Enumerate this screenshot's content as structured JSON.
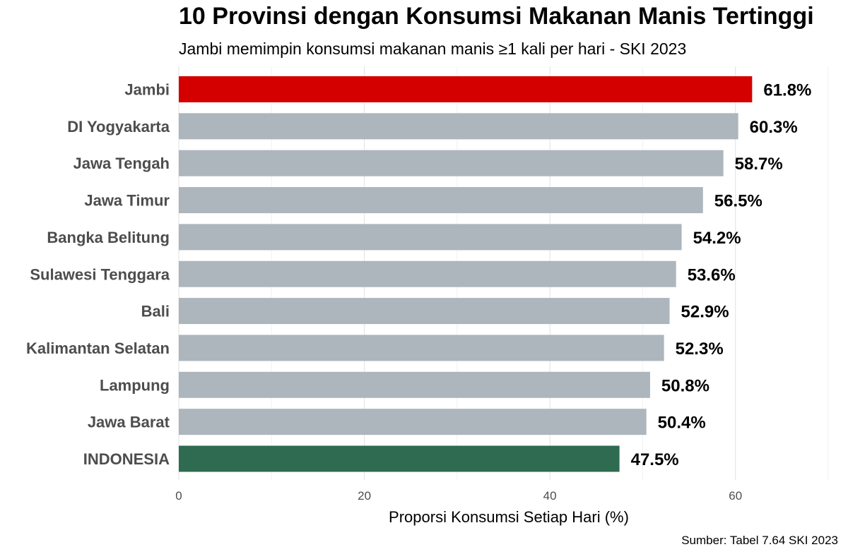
{
  "chart_data": {
    "type": "bar",
    "orientation": "horizontal",
    "title": "10 Provinsi dengan Konsumsi Makanan Manis Tertinggi",
    "subtitle": "Jambi memimpin konsumsi makanan manis ≥1 kali per hari - SKI 2023",
    "xlabel": "Proporsi Konsumsi Setiap Hari (%)",
    "ylabel": "",
    "xlim": [
      0,
      70
    ],
    "xticks": [
      0,
      20,
      40,
      60
    ],
    "grid": true,
    "categories": [
      "Jambi",
      "DI Yogyakarta",
      "Jawa Tengah",
      "Jawa Timur",
      "Bangka Belitung",
      "Sulawesi Tenggara",
      "Bali",
      "Kalimantan Selatan",
      "Lampung",
      "Jawa Barat",
      "INDONESIA"
    ],
    "values": [
      61.8,
      60.3,
      58.7,
      56.5,
      54.2,
      53.6,
      52.9,
      52.3,
      50.8,
      50.4,
      47.5
    ],
    "value_labels": [
      "61.8%",
      "60.3%",
      "58.7%",
      "56.5%",
      "54.2%",
      "53.6%",
      "52.9%",
      "52.3%",
      "50.8%",
      "50.4%",
      "47.5%"
    ],
    "bar_colors": [
      "#d40000",
      "#adb5bd",
      "#adb5bd",
      "#adb5bd",
      "#adb5bd",
      "#adb5bd",
      "#adb5bd",
      "#adb5bd",
      "#adb5bd",
      "#adb5bd",
      "#2e6b50"
    ],
    "source": "Sumber: Tabel 7.64 SKI 2023"
  }
}
